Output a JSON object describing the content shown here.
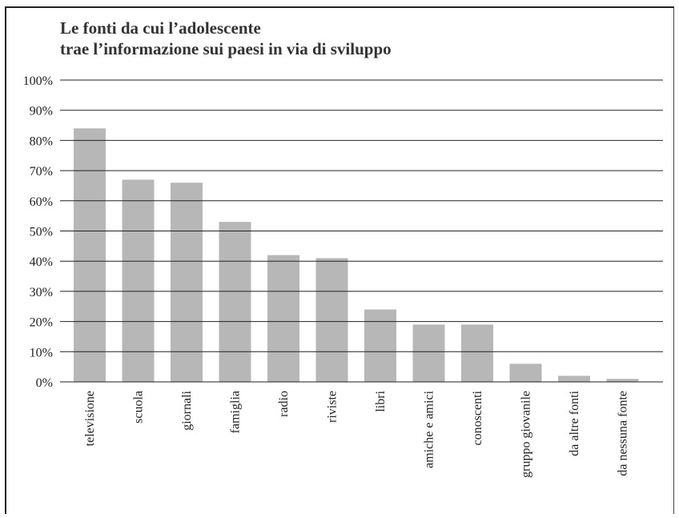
{
  "chart_data": {
    "type": "bar",
    "title": "Le fonti da cui l’adolescente",
    "subtitle": "trae l’informazione sui paesi in via di sviluppo",
    "categories": [
      "televisione",
      "scuola",
      "giornali",
      "famiglia",
      "radio",
      "riviste",
      "libri",
      "amiche e amici",
      "conoscenti",
      "gruppo giovanile",
      "da altre fonti",
      "da nessuna fonte"
    ],
    "values": [
      84,
      67,
      66,
      53,
      42,
      41,
      24,
      19,
      19,
      6,
      2,
      1
    ],
    "ylim": [
      0,
      100
    ],
    "yticks": [
      "0%",
      "10%",
      "20%",
      "30%",
      "40%",
      "50%",
      "60%",
      "70%",
      "80%",
      "90%",
      "100%"
    ],
    "xlabel": "",
    "ylabel": "",
    "grid": true,
    "colors": {
      "bar": "#b7b7b7",
      "grid": "#222222"
    }
  }
}
